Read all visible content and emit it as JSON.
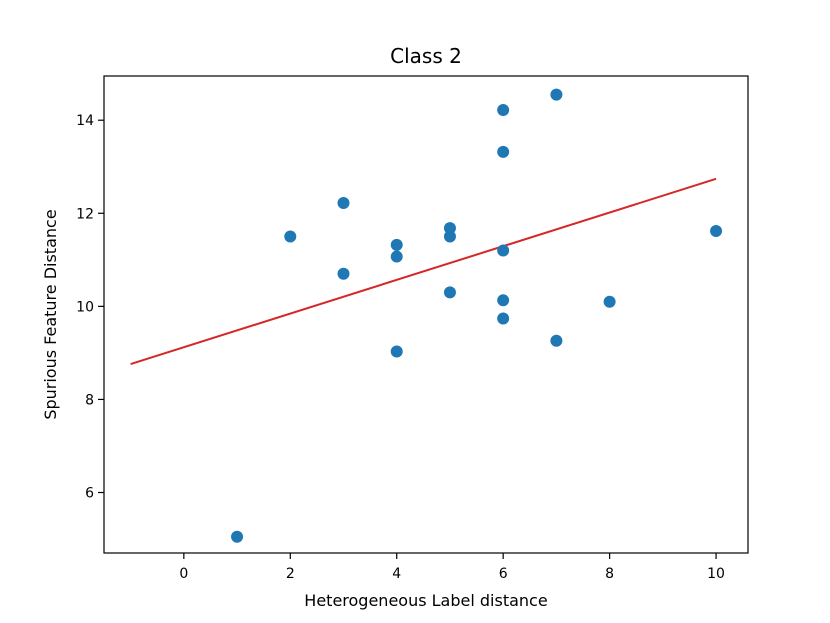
{
  "chart_data": {
    "type": "scatter",
    "title": "Class 2",
    "xlabel": "Heterogeneous Label distance",
    "ylabel": "Spurious Feature Distance",
    "xlim": [
      -1.5,
      10.6
    ],
    "ylim": [
      4.7,
      14.95
    ],
    "x_ticks": [
      0,
      2,
      4,
      6,
      8,
      10
    ],
    "y_ticks": [
      6,
      8,
      10,
      12,
      14
    ],
    "grid": false,
    "points": [
      {
        "x": 1,
        "y": 5.05
      },
      {
        "x": 2,
        "y": 11.5
      },
      {
        "x": 3,
        "y": 12.22
      },
      {
        "x": 3,
        "y": 10.7
      },
      {
        "x": 4,
        "y": 11.32
      },
      {
        "x": 4,
        "y": 11.07
      },
      {
        "x": 4,
        "y": 9.03
      },
      {
        "x": 5,
        "y": 11.68
      },
      {
        "x": 5,
        "y": 11.5
      },
      {
        "x": 5,
        "y": 10.3
      },
      {
        "x": 6,
        "y": 14.22
      },
      {
        "x": 6,
        "y": 13.32
      },
      {
        "x": 6,
        "y": 11.2
      },
      {
        "x": 6,
        "y": 10.13
      },
      {
        "x": 6,
        "y": 9.74
      },
      {
        "x": 7,
        "y": 14.55
      },
      {
        "x": 7,
        "y": 9.26
      },
      {
        "x": 8,
        "y": 10.1
      },
      {
        "x": 10,
        "y": 11.62
      }
    ],
    "trend_line": {
      "x": [
        -1,
        10
      ],
      "y": [
        8.76,
        12.74
      ]
    },
    "colors": {
      "points": "#1f77b4",
      "trend_line": "#d62728"
    }
  }
}
